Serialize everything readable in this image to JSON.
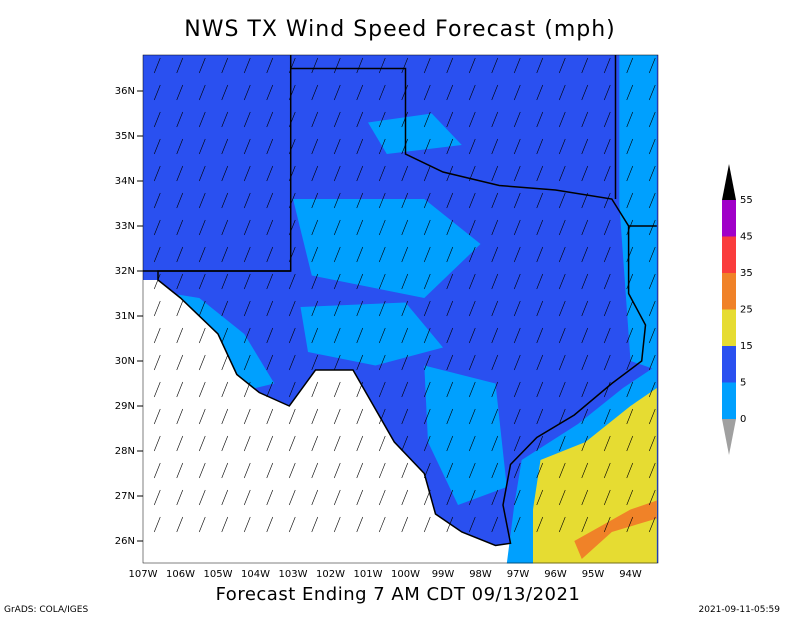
{
  "title": "NWS TX Wind Speed Forecast (mph)",
  "subtitle": "Forecast Ending 7 AM CDT 09/13/2021",
  "footer_left": "GrADS: COLA/IGES",
  "footer_right": "2021-09-11-05:59",
  "lat_labels": [
    "26N",
    "27N",
    "28N",
    "29N",
    "30N",
    "31N",
    "32N",
    "33N",
    "34N",
    "35N",
    "36N"
  ],
  "lon_labels": [
    "107W",
    "106W",
    "105W",
    "104W",
    "103W",
    "102W",
    "101W",
    "100W",
    "99W",
    "98W",
    "97W",
    "96W",
    "95W",
    "94W"
  ],
  "legend": {
    "levels": [
      0,
      5,
      15,
      25,
      35,
      45,
      55
    ],
    "colors": [
      "#00a0fe",
      "#2a50f0",
      "#e6dc32",
      "#f08228",
      "#fa3c3c",
      "#a000c8"
    ]
  }
}
